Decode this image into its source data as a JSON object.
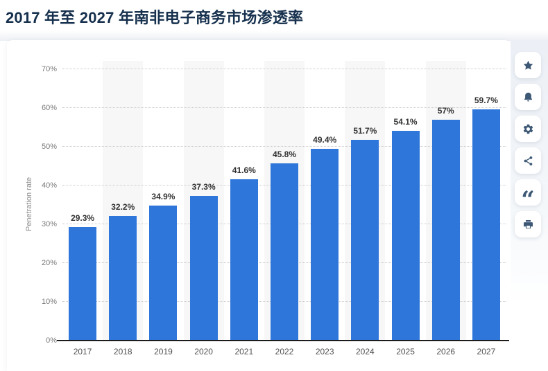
{
  "page": {
    "title": "2017 年至 2027 年南非电子商务市场渗透率"
  },
  "chart_data": {
    "type": "bar",
    "title": "2017 年至 2027 年南非电子商务市场渗透率",
    "categories": [
      "2017",
      "2018",
      "2019",
      "2020",
      "2021",
      "2022",
      "2023",
      "2024",
      "2025",
      "2026",
      "2027"
    ],
    "values": [
      29.3,
      32.2,
      34.9,
      37.3,
      41.6,
      45.8,
      49.4,
      51.7,
      54.1,
      57,
      59.7
    ],
    "value_labels": [
      "29.3%",
      "32.2%",
      "34.9%",
      "37.3%",
      "41.6%",
      "45.8%",
      "49.4%",
      "51.7%",
      "54.1%",
      "57%",
      "59.7%"
    ],
    "xlabel": "",
    "ylabel": "Penetration rate",
    "ylim": [
      0,
      70
    ],
    "ytick_step": 10,
    "ytick_labels": [
      "0%",
      "10%",
      "20%",
      "30%",
      "40%",
      "50%",
      "60%",
      "70%"
    ],
    "grid": "horizontal-dotted",
    "legend": "none",
    "bar_color": "#2e76d9",
    "band_color": "#f7f7f8",
    "gridline_color": "#c9c9c9",
    "axis_line_color": "#1c1c1c"
  },
  "toolbar": {
    "quote_glyph": "“",
    "buttons": [
      {
        "name": "favorite",
        "icon": "star-icon"
      },
      {
        "name": "alerts",
        "icon": "bell-icon"
      },
      {
        "name": "settings",
        "icon": "gear-icon"
      },
      {
        "name": "share",
        "icon": "share-icon"
      },
      {
        "name": "cite",
        "icon": "quote-icon"
      },
      {
        "name": "print",
        "icon": "printer-icon"
      }
    ]
  }
}
